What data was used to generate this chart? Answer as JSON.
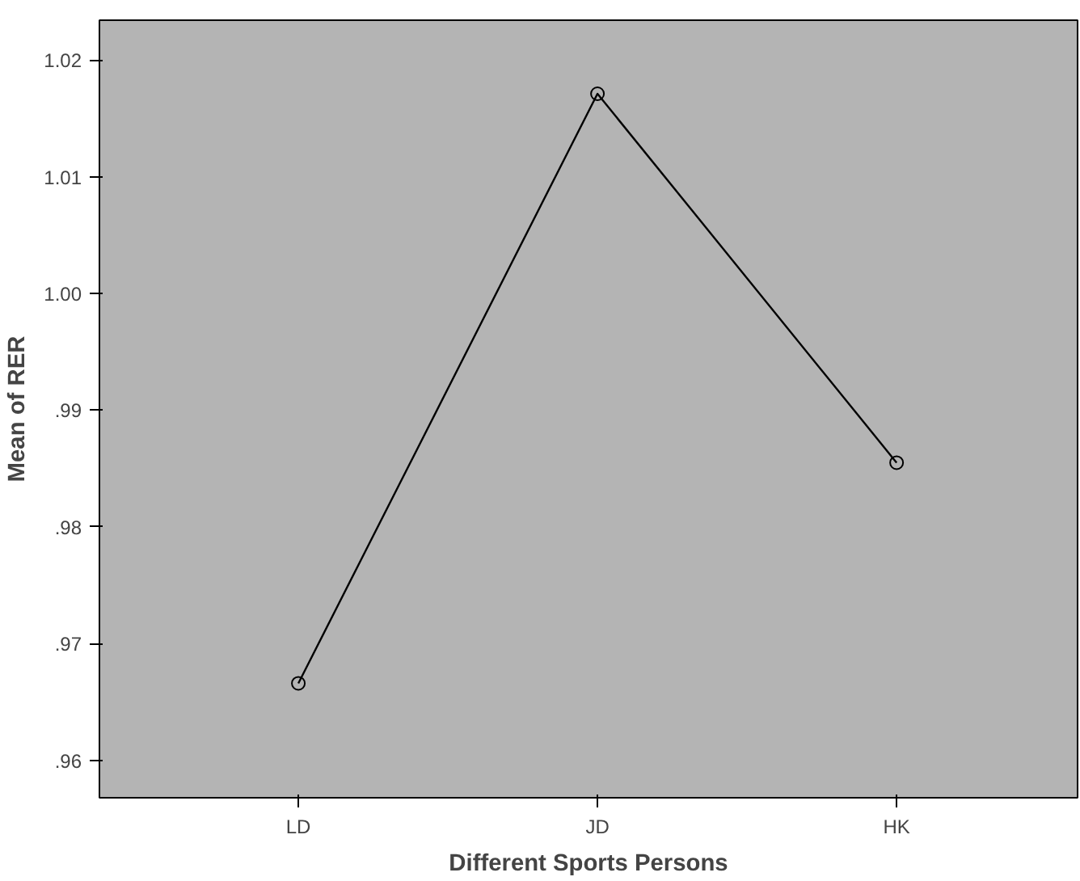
{
  "chart_data": {
    "type": "line",
    "xlabel": "Different Sports Persons",
    "ylabel": "Mean of RER",
    "categories": [
      "LD",
      "JD",
      "HK"
    ],
    "series": [
      {
        "color": "#000000",
        "values": [
          0.9666,
          1.0171,
          0.9855
        ]
      }
    ],
    "ylim": [
      0.9568,
      1.0234
    ],
    "yticks": [
      {
        "value": 0.96,
        "label": ".96"
      },
      {
        "value": 0.97,
        "label": ".97"
      },
      {
        "value": 0.98,
        "label": ".98"
      },
      {
        "value": 0.99,
        "label": ".99"
      },
      {
        "value": 1.0,
        "label": "1.00"
      },
      {
        "value": 1.01,
        "label": "1.01"
      },
      {
        "value": 1.02,
        "label": "1.02"
      }
    ],
    "marker": "circle",
    "line_style": "solid",
    "grid": false
  }
}
